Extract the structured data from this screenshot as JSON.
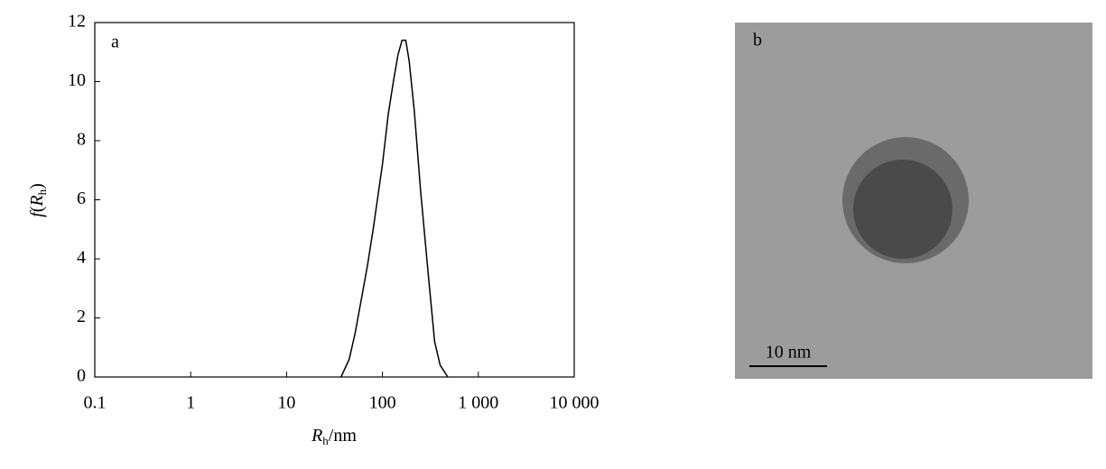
{
  "chart_data": {
    "type": "line",
    "panel_label": "a",
    "x": [
      37,
      45,
      52,
      60,
      70,
      80,
      100,
      115,
      130,
      145,
      160,
      175,
      190,
      215,
      250,
      300,
      350,
      400,
      480
    ],
    "values": [
      0,
      0.6,
      1.5,
      2.6,
      3.8,
      5.0,
      7.2,
      8.9,
      10.0,
      10.9,
      11.4,
      11.4,
      10.7,
      9.0,
      6.3,
      3.5,
      1.2,
      0.4,
      0
    ],
    "color": "#000000",
    "xscale": "log",
    "xlim": [
      0.1,
      10000
    ],
    "xticks": [
      0.1,
      1,
      10,
      100,
      {
        "value": 1000,
        "label": "1 000"
      },
      {
        "value": 10000,
        "label": "10 000"
      }
    ],
    "ylim": [
      0,
      12
    ],
    "yticks": [
      0,
      2,
      4,
      6,
      8,
      10,
      12
    ],
    "xlabel_parts": [
      "R",
      "h",
      "/nm"
    ],
    "ylabel_parts": [
      "f",
      "(",
      "R",
      "h",
      ")"
    ],
    "grid": false
  },
  "image": {
    "panel_label": "b",
    "scale_bar": "10 nm"
  }
}
